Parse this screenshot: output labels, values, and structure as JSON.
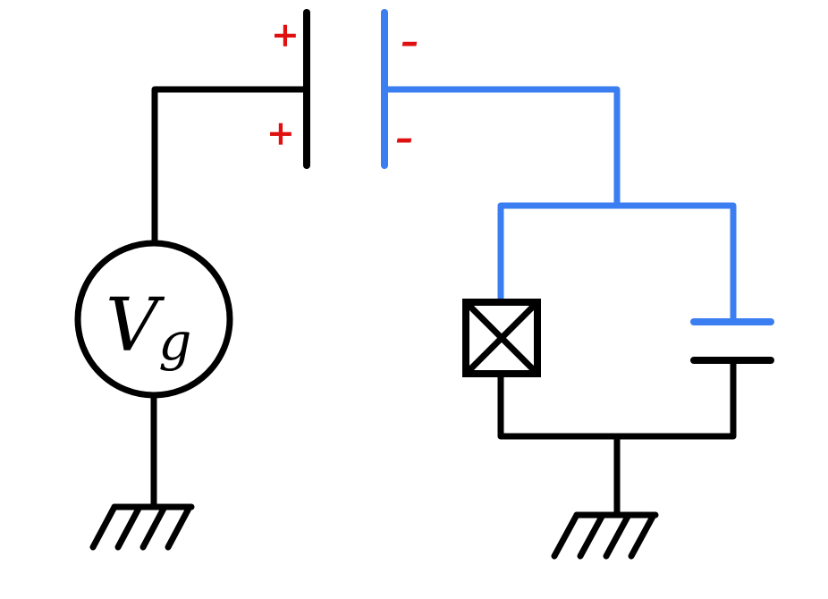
{
  "colors": {
    "wire": "#000000",
    "island": "#3b7ef2",
    "charge": "#e01010",
    "background": "#ffffff"
  },
  "source": {
    "label_main": "V",
    "label_sub": "g"
  },
  "charges": {
    "plus": "+",
    "minus": "–"
  },
  "icons": {
    "junction": "josephson-junction-icon",
    "ground": "ground-icon",
    "capacitor": "capacitor-icon"
  }
}
